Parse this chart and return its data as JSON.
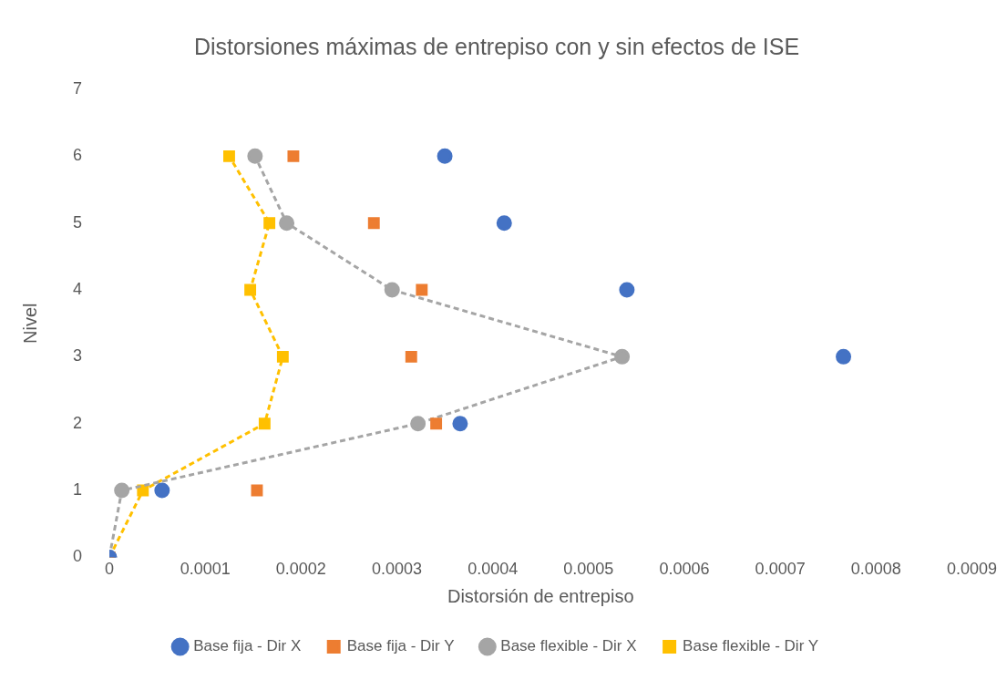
{
  "chart_data": {
    "type": "scatter",
    "title": "Distorsiones máximas de entrepiso con y sin efectos de ISE",
    "xlabel": "Distorsión de entrepiso",
    "ylabel": "Nivel",
    "xlim": [
      0,
      0.0009
    ],
    "xticks": [
      0,
      0.0001,
      0.0002,
      0.0003,
      0.0004,
      0.0005,
      0.0006,
      0.0007,
      0.0008,
      0.0009
    ],
    "ylim": [
      0,
      7
    ],
    "yticks": [
      0,
      1,
      2,
      3,
      4,
      5,
      6,
      7
    ],
    "grid": false,
    "legend": "bottom",
    "series": [
      {
        "name": "Base fija - Dir X",
        "marker": "circle",
        "color": "#4472c4",
        "x": [
          0,
          5.5e-05,
          0.000366,
          0.000766,
          0.00054,
          0.000412,
          0.00035
        ],
        "values": [
          0,
          1,
          2,
          3,
          4,
          5,
          6
        ]
      },
      {
        "name": "Base fija - Dir Y",
        "marker": "square",
        "color": "#ed7d31",
        "x": [
          0,
          0.000154,
          0.000341,
          0.000315,
          0.000326,
          0.000276,
          0.000192
        ],
        "values": [
          0,
          1,
          2,
          3,
          4,
          5,
          6
        ]
      },
      {
        "name": "Base flexible - Dir X",
        "type": "line",
        "marker": "circle",
        "line_style": "dashed",
        "color": "#a5a5a5",
        "x": [
          0,
          1.3e-05,
          0.000322,
          0.000535,
          0.000295,
          0.000185,
          0.000152
        ],
        "values": [
          0,
          1,
          2,
          3,
          4,
          5,
          6
        ]
      },
      {
        "name": "Base flexible - Dir Y",
        "type": "line",
        "marker": "square",
        "line_style": "dashed",
        "color": "#ffc000",
        "x": [
          0,
          3.5e-05,
          0.000162,
          0.000181,
          0.000147,
          0.000167,
          0.000125
        ],
        "values": [
          0,
          1,
          2,
          3,
          4,
          5,
          6
        ]
      }
    ]
  }
}
